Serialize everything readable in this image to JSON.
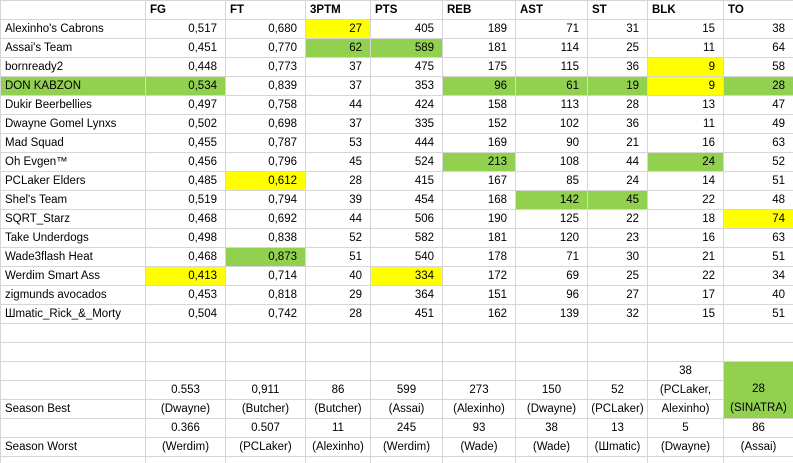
{
  "colors": {
    "best_green": "#92d050",
    "worst_yellow": "#ffff00",
    "gridline": "#d6d6d6",
    "background": "#ffffff"
  },
  "table": {
    "stat_columns": [
      "FG",
      "FT",
      "3PTM",
      "PTS",
      "REB",
      "AST",
      "ST",
      "BLK",
      "TO"
    ],
    "rows": [
      {
        "name": "Alexinho's Cabrons",
        "values": [
          "0,517",
          "0,680",
          "27",
          "405",
          "189",
          "71",
          "31",
          "15",
          "38"
        ],
        "highlights": {
          "2": "yellow"
        }
      },
      {
        "name": "Assai's Team",
        "values": [
          "0,451",
          "0,770",
          "62",
          "589",
          "181",
          "114",
          "25",
          "11",
          "64"
        ],
        "highlights": {
          "2": "green",
          "3": "green"
        }
      },
      {
        "name": "bornready2",
        "values": [
          "0,448",
          "0,773",
          "37",
          "475",
          "175",
          "115",
          "36",
          "9",
          "58"
        ],
        "highlights": {
          "7": "yellow"
        }
      },
      {
        "name": "DON KABZON",
        "values": [
          "0,534",
          "0,839",
          "37",
          "353",
          "96",
          "61",
          "19",
          "9",
          "28"
        ],
        "highlights": {
          "name": "green",
          "0": "green",
          "4": "green",
          "5": "green",
          "6": "green",
          "7": "yellow",
          "8": "green"
        }
      },
      {
        "name": "Dukir Beerbellies",
        "values": [
          "0,497",
          "0,758",
          "44",
          "424",
          "158",
          "113",
          "28",
          "13",
          "47"
        ],
        "highlights": {}
      },
      {
        "name": "Dwayne Gomel Lynxs",
        "values": [
          "0,502",
          "0,698",
          "37",
          "335",
          "152",
          "102",
          "36",
          "11",
          "49"
        ],
        "highlights": {}
      },
      {
        "name": "Mad Squad",
        "values": [
          "0,455",
          "0,787",
          "53",
          "444",
          "169",
          "90",
          "21",
          "16",
          "63"
        ],
        "highlights": {}
      },
      {
        "name": "Oh Evgen™",
        "values": [
          "0,456",
          "0,796",
          "45",
          "524",
          "213",
          "108",
          "44",
          "24",
          "52"
        ],
        "highlights": {
          "4": "green",
          "7": "green"
        }
      },
      {
        "name": "PCLaker Elders",
        "values": [
          "0,485",
          "0,612",
          "28",
          "415",
          "167",
          "85",
          "24",
          "14",
          "51"
        ],
        "highlights": {
          "1": "yellow"
        }
      },
      {
        "name": "Shel's Team",
        "values": [
          "0,519",
          "0,794",
          "39",
          "454",
          "168",
          "142",
          "45",
          "22",
          "48"
        ],
        "highlights": {
          "5": "green",
          "6": "green"
        }
      },
      {
        "name": "SQRT_Starz",
        "values": [
          "0,468",
          "0,692",
          "44",
          "506",
          "190",
          "125",
          "22",
          "18",
          "74"
        ],
        "highlights": {
          "8": "yellow"
        }
      },
      {
        "name": "Take Underdogs",
        "values": [
          "0,498",
          "0,838",
          "52",
          "582",
          "181",
          "120",
          "23",
          "16",
          "63"
        ],
        "highlights": {}
      },
      {
        "name": "Wade3flash Heat",
        "values": [
          "0,468",
          "0,873",
          "51",
          "540",
          "178",
          "71",
          "30",
          "21",
          "51"
        ],
        "highlights": {
          "1": "green"
        }
      },
      {
        "name": "Werdim Smart Ass",
        "values": [
          "0,413",
          "0,714",
          "40",
          "334",
          "172",
          "69",
          "25",
          "22",
          "34"
        ],
        "highlights": {
          "0": "yellow",
          "3": "yellow"
        }
      },
      {
        "name": "zigmunds avocados",
        "values": [
          "0,453",
          "0,818",
          "29",
          "364",
          "151",
          "96",
          "27",
          "17",
          "40"
        ],
        "highlights": {}
      },
      {
        "name": "Шmatic_Rick_&_Morty",
        "values": [
          "0,504",
          "0,742",
          "28",
          "451",
          "162",
          "139",
          "32",
          "15",
          "51"
        ],
        "highlights": {}
      }
    ],
    "season_best": {
      "label": "Season Best",
      "cells": [
        {
          "value": "0.553",
          "holder": "(Dwayne)"
        },
        {
          "value": "0,911",
          "holder": "(Butcher)"
        },
        {
          "value": "86",
          "holder": "(Butcher)"
        },
        {
          "value": "599",
          "holder": "(Assai)"
        },
        {
          "value": "273",
          "holder": "(Alexinho)"
        },
        {
          "value": "150",
          "holder": "(Dwayne)"
        },
        {
          "value": "52",
          "holder": "(PCLaker)"
        },
        {
          "value": "38",
          "holder": "(PCLaker,",
          "holder2": "Alexinho)"
        },
        {
          "value": "28",
          "holder": "(SINATRA)",
          "highlight": "green"
        }
      ]
    },
    "season_worst": {
      "label": "Season Worst",
      "cells": [
        {
          "value": "0.366",
          "holder": "(Werdim)"
        },
        {
          "value": "0.507",
          "holder": "(PCLaker)"
        },
        {
          "value": "11",
          "holder": "(Alexinho)"
        },
        {
          "value": "245",
          "holder": "(Werdim)"
        },
        {
          "value": "93",
          "holder": "(Wade)"
        },
        {
          "value": "38",
          "holder": "(Wade)"
        },
        {
          "value": "13",
          "holder": "(Шmatic)"
        },
        {
          "value": "5",
          "holder": "(Dwayne)"
        },
        {
          "value": "86",
          "holder": "(Assai)"
        }
      ]
    }
  }
}
